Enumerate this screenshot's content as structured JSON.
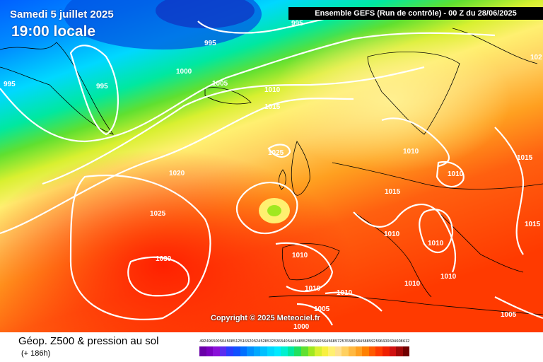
{
  "title": {
    "date": "Samedi 5 juillet 2025",
    "time": "19:00 locale"
  },
  "header": "Ensemble GEFS  (Run de contrôle)  -  00 Z du 28/06/2025",
  "copyright": "Copyright © 2025 Meteociel.fr",
  "footer": {
    "title": "Géop. Z500 & pression au sol",
    "subtitle": "(+ 186h)"
  },
  "scale": {
    "labels": [
      "492",
      "496",
      "500",
      "504",
      "508",
      "512",
      "516",
      "520",
      "524",
      "528",
      "532",
      "536",
      "540",
      "544",
      "548",
      "552",
      "556",
      "560",
      "564",
      "568",
      "572",
      "576",
      "580",
      "584",
      "588",
      "592",
      "596",
      "600",
      "604",
      "608",
      "612"
    ],
    "colors": [
      "#6a00a8",
      "#7a00c0",
      "#8a10d8",
      "#5a2cf0",
      "#2a3cff",
      "#1050ff",
      "#0070ff",
      "#0090ff",
      "#00a8ff",
      "#00c0ff",
      "#00d8ff",
      "#00eaff",
      "#00f0d0",
      "#00e8a0",
      "#20e060",
      "#60e030",
      "#a0e820",
      "#d8f030",
      "#f8f040",
      "#fff070",
      "#ffe090",
      "#ffd060",
      "#ffb840",
      "#ffa020",
      "#ff8000",
      "#ff5a00",
      "#ff3a00",
      "#f02000",
      "#d01010",
      "#a00808",
      "#700000"
    ]
  },
  "isobar_labels": [
    {
      "text": "995"
    },
    {
      "text": "995"
    },
    {
      "text": "995"
    },
    {
      "text": "995"
    },
    {
      "text": "1000"
    },
    {
      "text": "1005"
    },
    {
      "text": "1010"
    },
    {
      "text": "1015"
    },
    {
      "text": "1025"
    },
    {
      "text": "1020"
    },
    {
      "text": "1025"
    },
    {
      "text": "1030"
    },
    {
      "text": "1010"
    },
    {
      "text": "1010"
    },
    {
      "text": "1015"
    },
    {
      "text": "1010"
    },
    {
      "text": "1010"
    },
    {
      "text": "1015"
    },
    {
      "text": "1015"
    },
    {
      "text": "1010"
    },
    {
      "text": "1010"
    },
    {
      "text": "1010"
    },
    {
      "text": "1010"
    },
    {
      "text": "1010"
    },
    {
      "text": "1005"
    },
    {
      "text": "1000"
    },
    {
      "text": "1005"
    },
    {
      "text": "102"
    }
  ]
}
